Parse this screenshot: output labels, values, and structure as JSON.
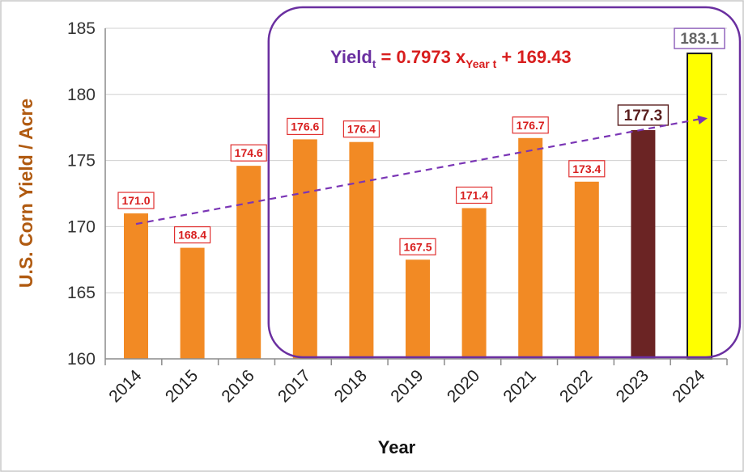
{
  "chart_data": {
    "type": "bar",
    "title": "",
    "xlabel": "Year",
    "ylabel": "U.S. Corn Yield / Acre",
    "ylim": [
      160,
      185
    ],
    "yticks": [
      160,
      165,
      170,
      175,
      180,
      185
    ],
    "categories": [
      "2014",
      "2015",
      "2016",
      "2017",
      "2018",
      "2019",
      "2020",
      "2021",
      "2022",
      "2023",
      "2024"
    ],
    "values": [
      171.0,
      168.4,
      174.6,
      176.6,
      176.4,
      167.5,
      171.4,
      176.7,
      173.4,
      177.3,
      183.1
    ],
    "value_labels": [
      "171.0",
      "168.4",
      "174.6",
      "176.6",
      "176.4",
      "167.5",
      "171.4",
      "176.7",
      "173.4",
      "177.3",
      "183.1"
    ],
    "bar_colors": [
      "#f28a24",
      "#f28a24",
      "#f28a24",
      "#f28a24",
      "#f28a24",
      "#f28a24",
      "#f28a24",
      "#f28a24",
      "#f28a24",
      "#6b2424",
      "#ffff00"
    ],
    "label_text_colors": [
      "#d81e1e",
      "#d81e1e",
      "#d81e1e",
      "#d81e1e",
      "#d81e1e",
      "#d81e1e",
      "#d81e1e",
      "#d81e1e",
      "#d81e1e",
      "#5a1e1e",
      "#666666"
    ],
    "label_border_colors": [
      "#e03030",
      "#e03030",
      "#e03030",
      "#e03030",
      "#e03030",
      "#e03030",
      "#e03030",
      "#e03030",
      "#e03030",
      "#5a1e1e",
      "#8a5bb8"
    ],
    "grid": "horizontal",
    "trend_line": {
      "from_year": "2014",
      "to_year": "2024",
      "y_start": 170.2,
      "y_end": 178.2,
      "color": "#7a35b5",
      "style": "dashed"
    },
    "annotation": {
      "eq_lhs": "Yield",
      "eq_lhs_sub": "t",
      "eq_equals": " = ",
      "eq_coef": "0.7973 x",
      "eq_coef_sub": "Year t",
      "eq_plus": " + ",
      "eq_intercept": "169.43",
      "lhs_color": "#6a2fa0",
      "coef_color": "#d81e1e",
      "highlight_years": [
        "2017",
        "2024"
      ]
    }
  }
}
